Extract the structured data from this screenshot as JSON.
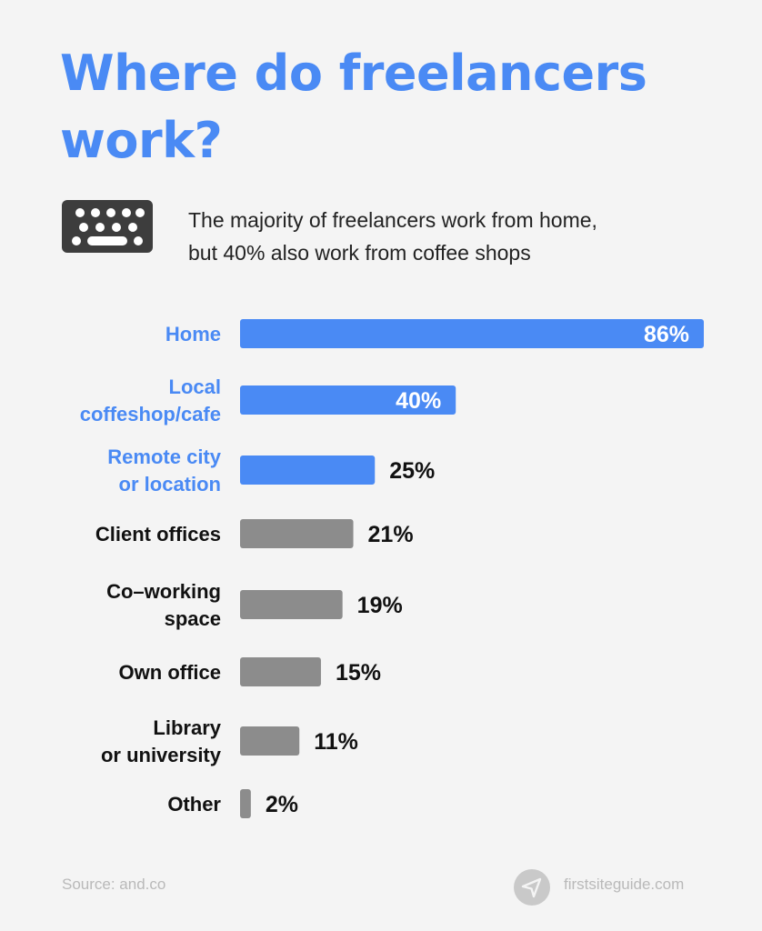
{
  "header": {
    "title": "Where do freelancers work?",
    "subtitle_line1": "The majority of freelancers work from home,",
    "subtitle_line2": "but 40% also work from coffee shops"
  },
  "colors": {
    "highlight": "#4a8af4",
    "muted": "#8c8c8c",
    "label_dark": "#111111"
  },
  "icons": {
    "header_icon": "keyboard-icon",
    "brand_icon": "paper-plane-icon"
  },
  "chart_data": {
    "type": "bar",
    "orientation": "horizontal",
    "categories": [
      [
        "Home"
      ],
      [
        "Local",
        "coffeshop/cafe"
      ],
      [
        "Remote city",
        "or location"
      ],
      [
        "Client offices"
      ],
      [
        "Co–working",
        "space"
      ],
      [
        "Own office"
      ],
      [
        "Library",
        "or university"
      ],
      [
        "Other"
      ]
    ],
    "values": [
      86,
      40,
      25,
      21,
      19,
      15,
      11,
      2
    ],
    "value_labels": [
      "86%",
      "40%",
      "25%",
      "21%",
      "19%",
      "15%",
      "11%",
      "2%"
    ],
    "highlighted": [
      true,
      true,
      true,
      false,
      false,
      false,
      false,
      false
    ],
    "xlim": [
      0,
      86
    ],
    "grid": false,
    "legend": "none"
  },
  "footer": {
    "source": "Source: and.co",
    "brand": "firstsiteguide.com"
  }
}
